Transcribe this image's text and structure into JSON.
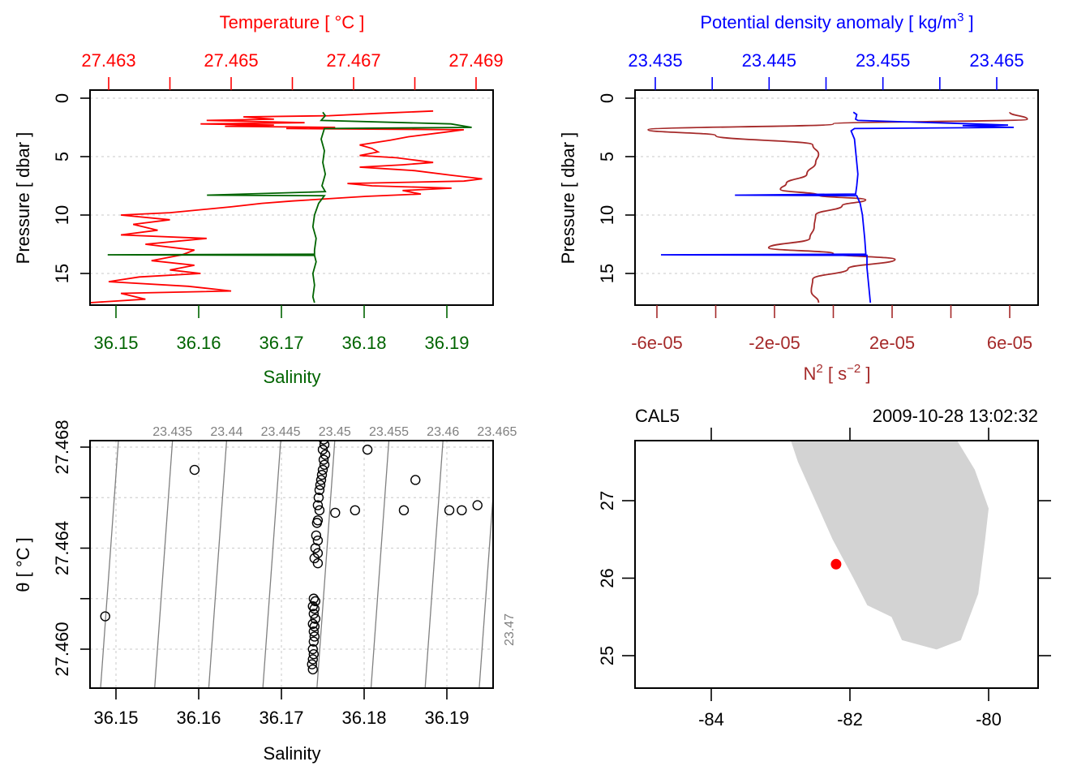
{
  "colors": {
    "temperature": "#ff0000",
    "salinity": "#006400",
    "density": "#0000ff",
    "n2": "#a52a2a",
    "axis": "#000000",
    "isopycnal": "#808080",
    "isopycnal_label": "#808080",
    "grid": "#d3d3d3",
    "land": "#d3d3d3",
    "station": "#ff0000"
  },
  "chart_data": [
    {
      "id": "profile-temperature-salinity",
      "type": "line",
      "title": "Temperature [ °C ]",
      "top_axis": {
        "label": "Temperature [ °C ]",
        "ticks": [
          27.463,
          27.464,
          27.465,
          27.466,
          27.467,
          27.468,
          27.469
        ],
        "tick_labels": [
          "27.463",
          "27.465",
          "27.467",
          "27.469"
        ],
        "range": [
          27.4626,
          27.4693
        ]
      },
      "bottom_axis": {
        "label": "Salinity",
        "ticks": [
          36.15,
          36.16,
          36.17,
          36.18,
          36.19
        ],
        "tick_labels": [
          "36.15",
          "36.16",
          "36.17",
          "36.18",
          "36.19"
        ],
        "range": [
          36.1468,
          36.1956
        ]
      },
      "y_axis": {
        "label": "Pressure [ dbar ]",
        "ticks": [
          0,
          5,
          10,
          15
        ],
        "tick_labels": [
          "0",
          "5",
          "10",
          "15"
        ],
        "range": [
          17.8,
          -0.7
        ],
        "reversed": true
      },
      "grid": "horizontal-dotted",
      "series": [
        {
          "name": "Temperature",
          "axis": "top",
          "points": [
            [
              27.4683,
              1.1
            ],
            [
              27.4674,
              1.3
            ],
            [
              27.4666,
              1.5
            ],
            [
              27.4652,
              1.6
            ],
            [
              27.4657,
              1.8
            ],
            [
              27.4646,
              1.9
            ],
            [
              27.4662,
              2.1
            ],
            [
              27.4645,
              2.2
            ],
            [
              27.4657,
              2.3
            ],
            [
              27.4649,
              2.4
            ],
            [
              27.4667,
              2.5
            ],
            [
              27.4659,
              2.6
            ],
            [
              27.4688,
              2.7
            ],
            [
              27.4685,
              2.9
            ],
            [
              27.4679,
              3.3
            ],
            [
              27.4676,
              3.6
            ],
            [
              27.4671,
              4.0
            ],
            [
              27.4673,
              4.3
            ],
            [
              27.4674,
              4.6
            ],
            [
              27.4671,
              4.9
            ],
            [
              27.4677,
              5.1
            ],
            [
              27.468,
              5.3
            ],
            [
              27.4683,
              5.5
            ],
            [
              27.4678,
              5.7
            ],
            [
              27.4671,
              5.9
            ],
            [
              27.4677,
              6.1
            ],
            [
              27.468,
              6.2
            ],
            [
              27.4686,
              6.6
            ],
            [
              27.4691,
              6.9
            ],
            [
              27.4688,
              7.1
            ],
            [
              27.4669,
              7.3
            ],
            [
              27.4673,
              7.5
            ],
            [
              27.4686,
              7.7
            ],
            [
              27.4678,
              7.9
            ],
            [
              27.4681,
              8.2
            ],
            [
              27.4672,
              8.4
            ],
            [
              27.466,
              8.8
            ],
            [
              27.4655,
              9.0
            ],
            [
              27.465,
              9.3
            ],
            [
              27.464,
              9.8
            ],
            [
              27.4632,
              10.0
            ],
            [
              27.464,
              10.4
            ],
            [
              27.4634,
              10.8
            ],
            [
              27.4638,
              11.3
            ],
            [
              27.4632,
              11.7
            ],
            [
              27.4646,
              12.0
            ],
            [
              27.4636,
              12.5
            ],
            [
              27.4644,
              13.0
            ],
            [
              27.4642,
              13.4
            ],
            [
              27.4637,
              13.9
            ],
            [
              27.4644,
              14.3
            ],
            [
              27.464,
              14.7
            ],
            [
              27.4645,
              15.0
            ],
            [
              27.4635,
              15.3
            ],
            [
              27.463,
              15.7
            ],
            [
              27.4643,
              16.1
            ],
            [
              27.465,
              16.5
            ],
            [
              27.4632,
              16.7
            ],
            [
              27.4636,
              17.2
            ],
            [
              27.4627,
              17.5
            ]
          ]
        },
        {
          "name": "Salinity",
          "axis": "bottom",
          "points": [
            [
              36.175,
              1.2
            ],
            [
              36.1753,
              1.5
            ],
            [
              36.1748,
              1.9
            ],
            [
              36.1905,
              2.2
            ],
            [
              36.193,
              2.5
            ],
            [
              36.1752,
              2.6
            ],
            [
              36.1748,
              3.5
            ],
            [
              36.1752,
              4.5
            ],
            [
              36.175,
              5.5
            ],
            [
              36.1753,
              6.5
            ],
            [
              36.1749,
              7.5
            ],
            [
              36.1753,
              8.0
            ],
            [
              36.161,
              8.3
            ],
            [
              36.1752,
              8.35
            ],
            [
              36.1745,
              9.0
            ],
            [
              36.174,
              10.0
            ],
            [
              36.1738,
              11.0
            ],
            [
              36.1742,
              12.0
            ],
            [
              36.174,
              13.0
            ],
            [
              36.174,
              13.35
            ],
            [
              36.149,
              13.4
            ],
            [
              36.174,
              13.45
            ],
            [
              36.1742,
              14.0
            ],
            [
              36.1738,
              15.0
            ],
            [
              36.174,
              16.0
            ],
            [
              36.1738,
              17.0
            ],
            [
              36.174,
              17.5
            ]
          ]
        }
      ]
    },
    {
      "id": "profile-density-n2",
      "type": "line",
      "title": "Potential density anomaly [ kg/m³ ]",
      "top_axis": {
        "label_main": "Potential density anomaly [ kg/m",
        "label_sup": "3",
        "label_end": " ]",
        "ticks": [
          23.435,
          23.44,
          23.445,
          23.45,
          23.455,
          23.46,
          23.465
        ],
        "tick_labels": [
          "23.435",
          "23.445",
          "23.455",
          "23.465"
        ],
        "range": [
          23.4332,
          23.4686
        ]
      },
      "bottom_axis": {
        "label_main": "N",
        "label_sup": "2",
        "label_mid": " [ s",
        "label_sup2": "−2",
        "label_end": " ]",
        "ticks": [
          -6e-05,
          -4e-05,
          -2e-05,
          0,
          2e-05,
          4e-05,
          6e-05
        ],
        "tick_labels": [
          "-6e-05",
          "-2e-05",
          "2e-05",
          "6e-05"
        ],
        "range": [
          -6.7e-05,
          6.95e-05
        ]
      },
      "y_axis": {
        "label": "Pressure [ dbar ]",
        "ticks": [
          0,
          5,
          10,
          15
        ],
        "tick_labels": [
          "0",
          "5",
          "10",
          "15"
        ],
        "range": [
          17.8,
          -0.7
        ],
        "reversed": true
      },
      "grid": "horizontal-dotted",
      "series": [
        {
          "name": "Potential density anomaly",
          "axis": "top",
          "points": [
            [
              23.4524,
              1.2
            ],
            [
              23.4527,
              1.4
            ],
            [
              23.4526,
              1.8
            ],
            [
              23.4528,
              1.9
            ],
            [
              23.463,
              2.2
            ],
            [
              23.466,
              2.3
            ],
            [
              23.462,
              2.35
            ],
            [
              23.4665,
              2.5
            ],
            [
              23.4525,
              2.6
            ],
            [
              23.4522,
              2.8
            ],
            [
              23.4525,
              3.5
            ],
            [
              23.4526,
              4.5
            ],
            [
              23.4527,
              5.5
            ],
            [
              23.4528,
              6.5
            ],
            [
              23.4527,
              7.5
            ],
            [
              23.4526,
              8.2
            ],
            [
              23.442,
              8.3
            ],
            [
              23.4527,
              8.35
            ],
            [
              23.453,
              9.0
            ],
            [
              23.4532,
              10.0
            ],
            [
              23.4533,
              11.0
            ],
            [
              23.4534,
              12.0
            ],
            [
              23.4535,
              13.35
            ],
            [
              23.4355,
              13.4
            ],
            [
              23.4536,
              13.45
            ],
            [
              23.4536,
              14.5
            ],
            [
              23.4537,
              15.5
            ],
            [
              23.4538,
              16.5
            ],
            [
              23.4539,
              17.5
            ]
          ]
        },
        {
          "name": "N2",
          "axis": "bottom",
          "points": [
            [
              6e-05,
              1.2
            ],
            [
              6.6e-05,
              1.8
            ],
            [
              0.0,
              2.2
            ],
            [
              -6.3e-05,
              2.7
            ],
            [
              -4e-05,
              3.2
            ],
            [
              -7e-06,
              4.0
            ],
            [
              -5e-06,
              4.8
            ],
            [
              -6e-06,
              5.5
            ],
            [
              -9e-06,
              6.5
            ],
            [
              -1.6e-05,
              7.3
            ],
            [
              -1.8e-05,
              7.8
            ],
            [
              -5e-06,
              8.3
            ],
            [
              1.1e-05,
              8.7
            ],
            [
              3e-06,
              9.2
            ],
            [
              -6e-06,
              10.0
            ],
            [
              -6.5e-06,
              11.0
            ],
            [
              -8e-06,
              12.0
            ],
            [
              -2.2e-05,
              12.8
            ],
            [
              0.0,
              13.3
            ],
            [
              2.1e-05,
              13.8
            ],
            [
              5e-06,
              14.6
            ],
            [
              -7e-06,
              15.5
            ],
            [
              -7.5e-06,
              16.5
            ],
            [
              -5e-06,
              17.5
            ]
          ]
        }
      ]
    },
    {
      "id": "ts-diagram",
      "type": "scatter",
      "x_axis": {
        "label": "Salinity",
        "ticks": [
          36.15,
          36.16,
          36.17,
          36.18,
          36.19
        ],
        "tick_labels": [
          "36.15",
          "36.16",
          "36.17",
          "36.18",
          "36.19"
        ],
        "range": [
          36.1468,
          36.1956
        ]
      },
      "y_axis": {
        "label": "θ [ °C ]",
        "ticks": [
          27.46,
          27.462,
          27.464,
          27.466,
          27.468
        ],
        "tick_labels": [
          "27.460",
          "27.464",
          "27.468"
        ],
        "range": [
          27.4671,
          27.4589
        ],
        "range_display": [
          27.4589,
          27.4683
        ]
      },
      "grid": "dotted",
      "isopycnals": {
        "levels": [
          23.43,
          23.435,
          23.44,
          23.445,
          23.45,
          23.455,
          23.46,
          23.465,
          23.47
        ],
        "labels": [
          "23.435",
          "23.44",
          "23.445",
          "23.45",
          "23.455",
          "23.46",
          "23.465",
          "23.47"
        ],
        "bottom_salinity": [
          36.1475,
          36.1542,
          36.1608,
          36.1675,
          36.1741,
          36.1807,
          36.1874,
          36.194,
          null
        ],
        "top_salinity": [
          36.1498,
          36.1563,
          36.163,
          36.1696,
          36.1762,
          36.1828,
          36.1895,
          36.1961,
          null
        ]
      },
      "points": [
        [
          36.1487,
          27.4613
        ],
        [
          36.1595,
          27.4671
        ],
        [
          36.1804,
          27.4679
        ],
        [
          36.1862,
          27.4667
        ],
        [
          36.1848,
          27.4655
        ],
        [
          36.1789,
          27.4655
        ],
        [
          36.1765,
          27.4654
        ],
        [
          36.1903,
          27.4655
        ],
        [
          36.1918,
          27.4655
        ],
        [
          36.1937,
          27.4657
        ],
        [
          36.175,
          27.4689
        ],
        [
          36.1752,
          27.4686
        ],
        [
          36.1751,
          27.4683
        ],
        [
          36.1752,
          27.4681
        ],
        [
          36.175,
          27.4679
        ],
        [
          36.1753,
          27.4677
        ],
        [
          36.1751,
          27.4675
        ],
        [
          36.1752,
          27.4673
        ],
        [
          36.175,
          27.4671
        ],
        [
          36.1749,
          27.4669
        ],
        [
          36.1748,
          27.4667
        ],
        [
          36.1747,
          27.4665
        ],
        [
          36.1746,
          27.4663
        ],
        [
          36.1745,
          27.466
        ],
        [
          36.1744,
          27.4657
        ],
        [
          36.1746,
          27.4655
        ],
        [
          36.1744,
          27.4651
        ],
        [
          36.1743,
          27.465
        ],
        [
          36.1742,
          27.4645
        ],
        [
          36.1744,
          27.4643
        ],
        [
          36.1741,
          27.464
        ],
        [
          36.1744,
          27.4638
        ],
        [
          36.174,
          27.4636
        ],
        [
          36.1744,
          27.4634
        ],
        [
          36.1739,
          27.462
        ],
        [
          36.1741,
          27.4619
        ],
        [
          36.1738,
          27.4617
        ],
        [
          36.174,
          27.4616
        ],
        [
          36.1739,
          27.4614
        ],
        [
          36.1741,
          27.4612
        ],
        [
          36.1738,
          27.461
        ],
        [
          36.174,
          27.4609
        ],
        [
          36.1739,
          27.4607
        ],
        [
          36.174,
          27.4605
        ],
        [
          36.1739,
          27.4603
        ],
        [
          36.1738,
          27.46
        ],
        [
          36.1739,
          27.4598
        ],
        [
          36.1738,
          27.4596
        ],
        [
          36.1737,
          27.4594
        ],
        [
          36.1738,
          27.4592
        ]
      ]
    },
    {
      "id": "station-map",
      "type": "scatter",
      "title_left": "CAL5",
      "title_right": "2009-10-28 13:02:32",
      "x_axis": {
        "ticks": [
          -84,
          -82,
          -80
        ],
        "tick_labels": [
          "-84",
          "-82",
          "-80"
        ],
        "range": [
          -85.1,
          -79.3
        ]
      },
      "y_axis": {
        "ticks": [
          25,
          26,
          27
        ],
        "tick_labels": [
          "25",
          "26",
          "27"
        ],
        "range": [
          24.6,
          27.77
        ]
      },
      "coastline": [
        [
          -82.85,
          27.77
        ],
        [
          -82.75,
          27.5
        ],
        [
          -82.5,
          27.0
        ],
        [
          -82.25,
          26.5
        ],
        [
          -81.95,
          26.0
        ],
        [
          -81.75,
          25.65
        ],
        [
          -81.4,
          25.5
        ],
        [
          -81.25,
          25.2
        ],
        [
          -80.75,
          25.08
        ],
        [
          -80.4,
          25.2
        ],
        [
          -80.15,
          25.8
        ],
        [
          -80.05,
          26.5
        ],
        [
          -80.0,
          26.9
        ],
        [
          -80.2,
          27.4
        ],
        [
          -80.45,
          27.77
        ]
      ],
      "station": {
        "name": "CAL5",
        "lon": -82.2,
        "lat": 26.18
      }
    }
  ]
}
